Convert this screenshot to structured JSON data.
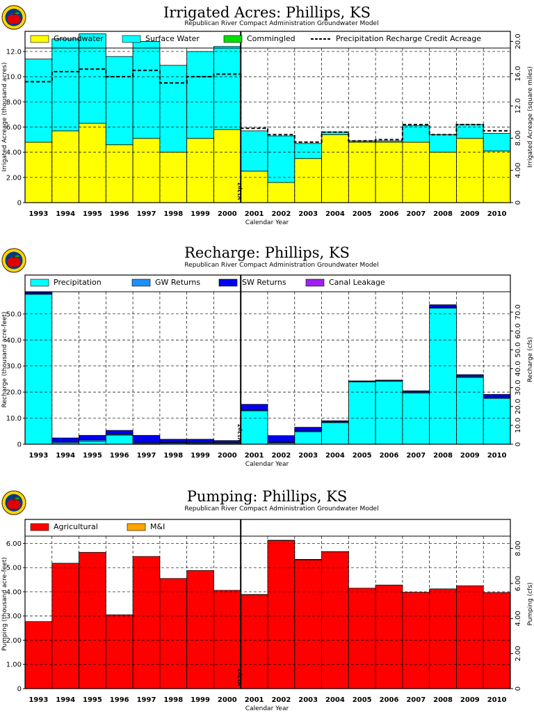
{
  "years": [
    "1993",
    "1994",
    "1995",
    "1996",
    "1997",
    "1998",
    "1999",
    "2000",
    "2001",
    "2002",
    "2003",
    "2004",
    "2005",
    "2006",
    "2007",
    "2008",
    "2009",
    "2010"
  ],
  "colors": {
    "groundwater": "#ffff00",
    "surface_water": "#00ffff",
    "commingled": "#00e000",
    "precipitation": "#00ffff",
    "gw_returns": "#1e90ff",
    "sw_returns": "#0000ee",
    "canal_leakage": "#a020f0",
    "agricultural": "#ff0000",
    "mi": "#ffa500"
  },
  "icons": [
    "apple-logo-icon"
  ],
  "chart_data": [
    {
      "type": "bar",
      "title": "Irrigated Acres: Phillips, KS",
      "subtitle": "Republican River Compact Administration Groundwater Model",
      "xlabel": "Calendar Year",
      "ylabel": "Irrigated Acreage (thousand acres)",
      "y2label": "Irrigated Acreage (square miles)",
      "ylim": [
        0,
        13.6
      ],
      "y_ticks": [
        0,
        2.0,
        4.0,
        6.0,
        8.0,
        10.0,
        12.0
      ],
      "y_tick_labels": [
        "0",
        "2.00",
        "4.00",
        "6.00",
        "8.00",
        "10.0",
        "12.0"
      ],
      "y2_ticks": [
        0,
        4.0,
        8.0,
        12.0,
        16.0,
        20.0
      ],
      "y2_tick_labels": [
        "0",
        "4.00",
        "8.00",
        "12.0",
        "16.0",
        "20.0"
      ],
      "y2_per_y": 1.5625,
      "grid": true,
      "legend_position": "top",
      "marker_text": "V12p7",
      "series": [
        {
          "name": "Groundwater",
          "key": "groundwater",
          "values": [
            4.8,
            5.7,
            6.3,
            4.6,
            5.1,
            4.0,
            5.1,
            5.8,
            2.5,
            1.6,
            3.5,
            5.4,
            4.8,
            4.8,
            4.8,
            4.0,
            5.1,
            4.1
          ]
        },
        {
          "name": "Surface Water",
          "key": "surface_water",
          "values": [
            6.6,
            7.3,
            7.1,
            7.0,
            7.7,
            6.9,
            6.9,
            6.6,
            3.2,
            3.7,
            1.2,
            0.2,
            0.1,
            0.1,
            1.3,
            1.4,
            1.1,
            1.4
          ]
        },
        {
          "name": "Commingled",
          "key": "commingled",
          "values": [
            0,
            0,
            0,
            0,
            0,
            0,
            0,
            0,
            0,
            0,
            0,
            0,
            0,
            0,
            0,
            0,
            0,
            0
          ]
        }
      ],
      "line_series": {
        "name": "Precipitation Recharge Credit Acreage",
        "values": [
          9.6,
          10.4,
          10.6,
          10.0,
          10.5,
          9.5,
          10.0,
          10.2,
          5.9,
          5.4,
          4.8,
          5.6,
          4.9,
          5.0,
          6.2,
          5.4,
          6.2,
          5.7
        ]
      }
    },
    {
      "type": "bar",
      "title": "Recharge: Phillips, KS",
      "subtitle": "Republican River Compact Administration Groundwater Model",
      "xlabel": "Calendar Year",
      "ylabel": "Recharge (thousand acre-feet)",
      "y2label": "Recharge (cfs)",
      "ylim": [
        0,
        58.5
      ],
      "y_ticks": [
        0,
        10,
        20,
        30,
        40,
        50
      ],
      "y_tick_labels": [
        "0",
        "10.0",
        "20.0",
        "30.0",
        "40.0",
        "50.0"
      ],
      "y2_ticks": [
        0,
        10,
        20,
        30,
        40,
        50,
        60,
        70
      ],
      "y2_tick_labels": [
        "0",
        "10.0",
        "20.0",
        "30.0",
        "40.0",
        "50.0",
        "60.0",
        "70.0"
      ],
      "y2_per_y": 1.381,
      "grid": true,
      "legend_position": "top",
      "marker_text": "V12p7",
      "series": [
        {
          "name": "Precipitation",
          "key": "precipitation",
          "values": [
            57.5,
            0.5,
            1.2,
            3.5,
            0.2,
            0.4,
            0.3,
            0.3,
            12.8,
            0.5,
            4.8,
            8.3,
            23.9,
            24.2,
            19.7,
            52.2,
            25.6,
            17.6
          ]
        },
        {
          "name": "GW Returns",
          "key": "gw_returns",
          "values": [
            0.3,
            0.4,
            0.5,
            0.4,
            0.4,
            0.3,
            0.4,
            0.4,
            0.3,
            0.2,
            0.3,
            0.3,
            0.3,
            0.3,
            0.3,
            0.3,
            0.4,
            0.3
          ]
        },
        {
          "name": "SW Returns",
          "key": "sw_returns",
          "values": [
            0.5,
            1.5,
            1.7,
            1.4,
            2.8,
            1.2,
            1.2,
            0.7,
            2.2,
            2.6,
            1.4,
            0.4,
            0.1,
            0.1,
            0.5,
            1.0,
            0.7,
            1.2
          ]
        },
        {
          "name": "Canal Leakage",
          "key": "canal_leakage",
          "values": [
            0,
            0,
            0,
            0,
            0,
            0,
            0,
            0,
            0,
            0,
            0,
            0,
            0,
            0,
            0,
            0,
            0,
            0
          ]
        }
      ]
    },
    {
      "type": "bar",
      "title": "Pumping: Phillips, KS",
      "subtitle": "Republican River Compact Administration Groundwater Model",
      "xlabel": "Calendar Year",
      "ylabel": "Pumping (thousand acre-feet)",
      "y2label": "Pumping (cfs)",
      "ylim": [
        0,
        6.3
      ],
      "y_ticks": [
        0,
        1.0,
        2.0,
        3.0,
        4.0,
        5.0,
        6.0
      ],
      "y_tick_labels": [
        "0",
        "1.00",
        "2.00",
        "3.00",
        "4.00",
        "5.00",
        "6.00"
      ],
      "y2_ticks": [
        0,
        2.0,
        4.0,
        6.0,
        8.0
      ],
      "y2_tick_labels": [
        "0",
        "2.00",
        "4.00",
        "6.00",
        "8.00"
      ],
      "y2_per_y": 1.381,
      "grid": true,
      "legend_position": "top",
      "marker_text": "V12p7",
      "series": [
        {
          "name": "Agricultural",
          "key": "agricultural",
          "values": [
            2.77,
            5.18,
            5.63,
            3.05,
            5.46,
            4.55,
            4.88,
            4.06,
            3.88,
            6.12,
            5.32,
            5.65,
            4.15,
            4.28,
            3.98,
            4.12,
            4.25,
            3.97
          ]
        },
        {
          "name": "M&I",
          "key": "mi",
          "values": [
            0,
            0,
            0,
            0,
            0,
            0,
            0,
            0,
            0.01,
            0.01,
            0.02,
            0.01,
            0,
            0,
            0,
            0,
            0,
            0
          ]
        }
      ]
    }
  ]
}
